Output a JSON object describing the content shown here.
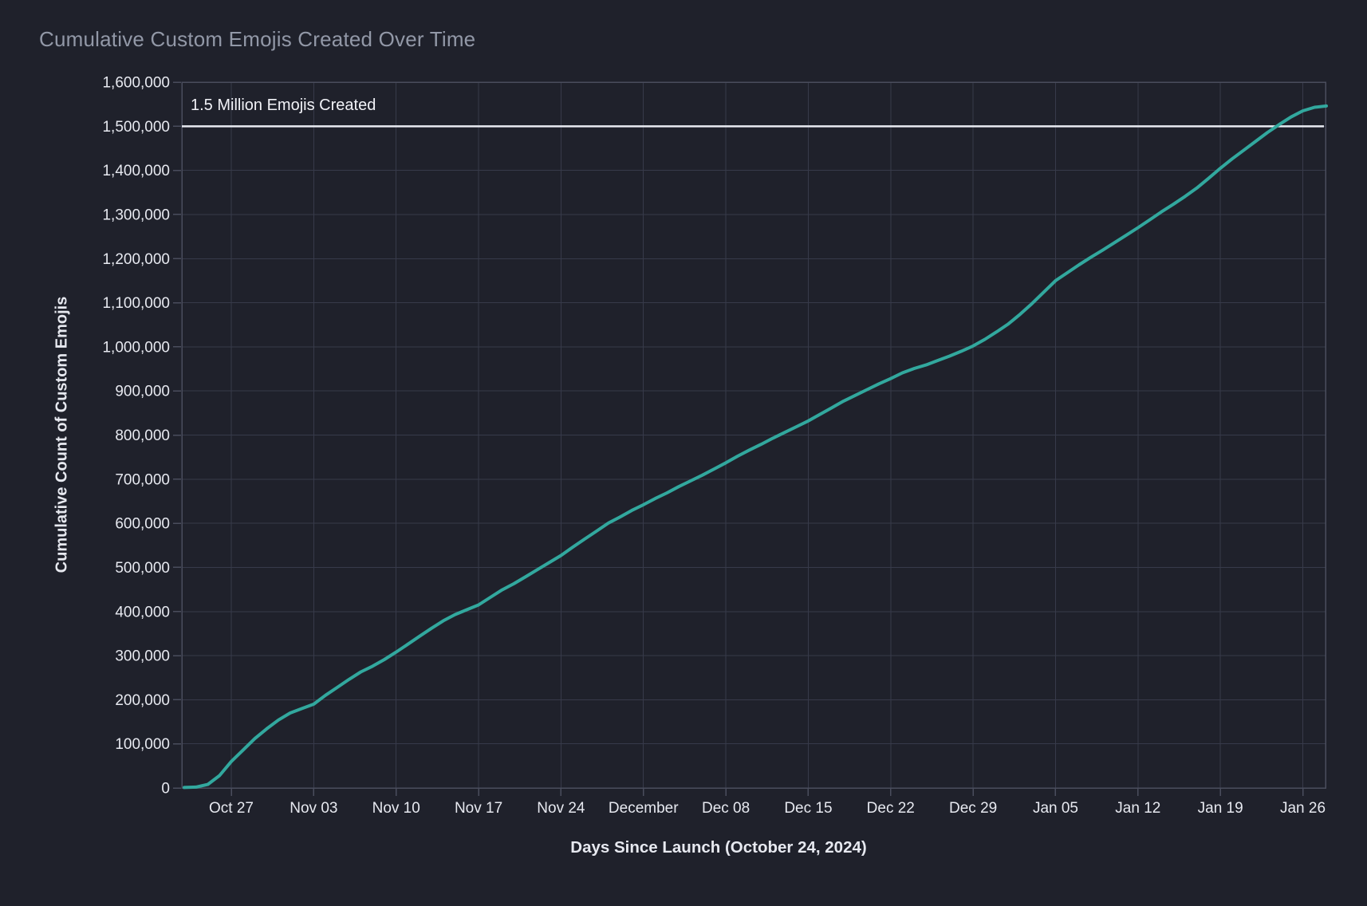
{
  "chart_data": {
    "type": "line",
    "title": "Cumulative Custom Emojis Created Over Time",
    "xlabel": "Days Since Launch (October 24, 2024)",
    "ylabel": "Cumulative Count of Custom Emojis",
    "ylim": [
      0,
      1600000
    ],
    "grid": true,
    "legend": "none",
    "y_ticks": {
      "values": [
        0,
        100000,
        200000,
        300000,
        400000,
        500000,
        600000,
        700000,
        800000,
        900000,
        1000000,
        1100000,
        1200000,
        1300000,
        1400000,
        1500000,
        1600000
      ],
      "labels": [
        "0",
        "100,000",
        "200,000",
        "300,000",
        "400,000",
        "500,000",
        "600,000",
        "700,000",
        "800,000",
        "900,000",
        "1,000,000",
        "1,100,000",
        "1,200,000",
        "1,300,000",
        "1,400,000",
        "1,500,000",
        "1,600,000"
      ]
    },
    "x_ticks": {
      "labels": [
        "Oct 27",
        "Nov 03",
        "Nov 10",
        "Nov 17",
        "Nov 24",
        "December",
        "Dec 08",
        "Dec 15",
        "Dec 22",
        "Dec 29",
        "Jan 05",
        "Jan 12",
        "Jan 19",
        "Jan 26"
      ],
      "days_since_launch": [
        3,
        10,
        17,
        24,
        31,
        38,
        45,
        52,
        59,
        66,
        73,
        80,
        87,
        94
      ]
    },
    "annotation_line": {
      "label": "1.5 Million Emojis Created",
      "y_value": 1500000,
      "color": "#e9ebf2"
    },
    "series": [
      {
        "name": "Cumulative Custom Emojis",
        "color": "#32a89e",
        "weekly_points": [
          {
            "label": "Oct 24 (launch)",
            "value": 0
          },
          {
            "label": "Oct 27",
            "value": 60000
          },
          {
            "label": "Nov 03",
            "value": 190000
          },
          {
            "label": "Nov 10",
            "value": 308000
          },
          {
            "label": "Nov 17",
            "value": 415000
          },
          {
            "label": "Nov 24",
            "value": 527000
          },
          {
            "label": "Dec 01",
            "value": 642000
          },
          {
            "label": "Dec 08",
            "value": 737000
          },
          {
            "label": "Dec 15",
            "value": 832000
          },
          {
            "label": "Dec 22",
            "value": 928000
          },
          {
            "label": "Dec 29",
            "value": 1002000
          },
          {
            "label": "Jan 05",
            "value": 1150000
          },
          {
            "label": "Jan 12",
            "value": 1270000
          },
          {
            "label": "Jan 19",
            "value": 1405000
          },
          {
            "label": "Jan 26",
            "value": 1535000
          },
          {
            "label": "Jan 28 (end)",
            "value": 1546000
          }
        ],
        "daily_estimates": {
          "start_day": -1,
          "values": [
            1000,
            2000,
            8000,
            28000,
            60000,
            86000,
            112000,
            134000,
            154000,
            170000,
            180000,
            190000,
            210000,
            228000,
            246000,
            263000,
            276000,
            291000,
            308000,
            326000,
            344000,
            362000,
            379000,
            393000,
            404000,
            415000,
            432000,
            449000,
            463000,
            479000,
            495000,
            511000,
            527000,
            546000,
            564000,
            582000,
            600000,
            614000,
            629000,
            642000,
            656000,
            669000,
            683000,
            696000,
            709000,
            723000,
            737000,
            752000,
            766000,
            779000,
            793000,
            806000,
            819000,
            832000,
            847000,
            862000,
            877000,
            890000,
            903000,
            916000,
            928000,
            941000,
            951000,
            959000,
            969000,
            979000,
            990000,
            1002000,
            1017000,
            1034000,
            1052000,
            1074000,
            1098000,
            1124000,
            1150000,
            1168000,
            1186000,
            1203000,
            1219000,
            1236000,
            1253000,
            1270000,
            1288000,
            1306000,
            1323000,
            1341000,
            1360000,
            1382000,
            1405000,
            1426000,
            1446000,
            1466000,
            1486000,
            1504000,
            1521000,
            1535000,
            1543000,
            1546000
          ]
        }
      }
    ],
    "colors": {
      "background": "#1f212b",
      "gridline": "#373a4a",
      "plot_border": "#4a4d5d",
      "line": "#32a89e",
      "annotation_line": "#e9ebf2",
      "tick_text": "#e7e9f0",
      "title_text": "#9298a7"
    }
  }
}
